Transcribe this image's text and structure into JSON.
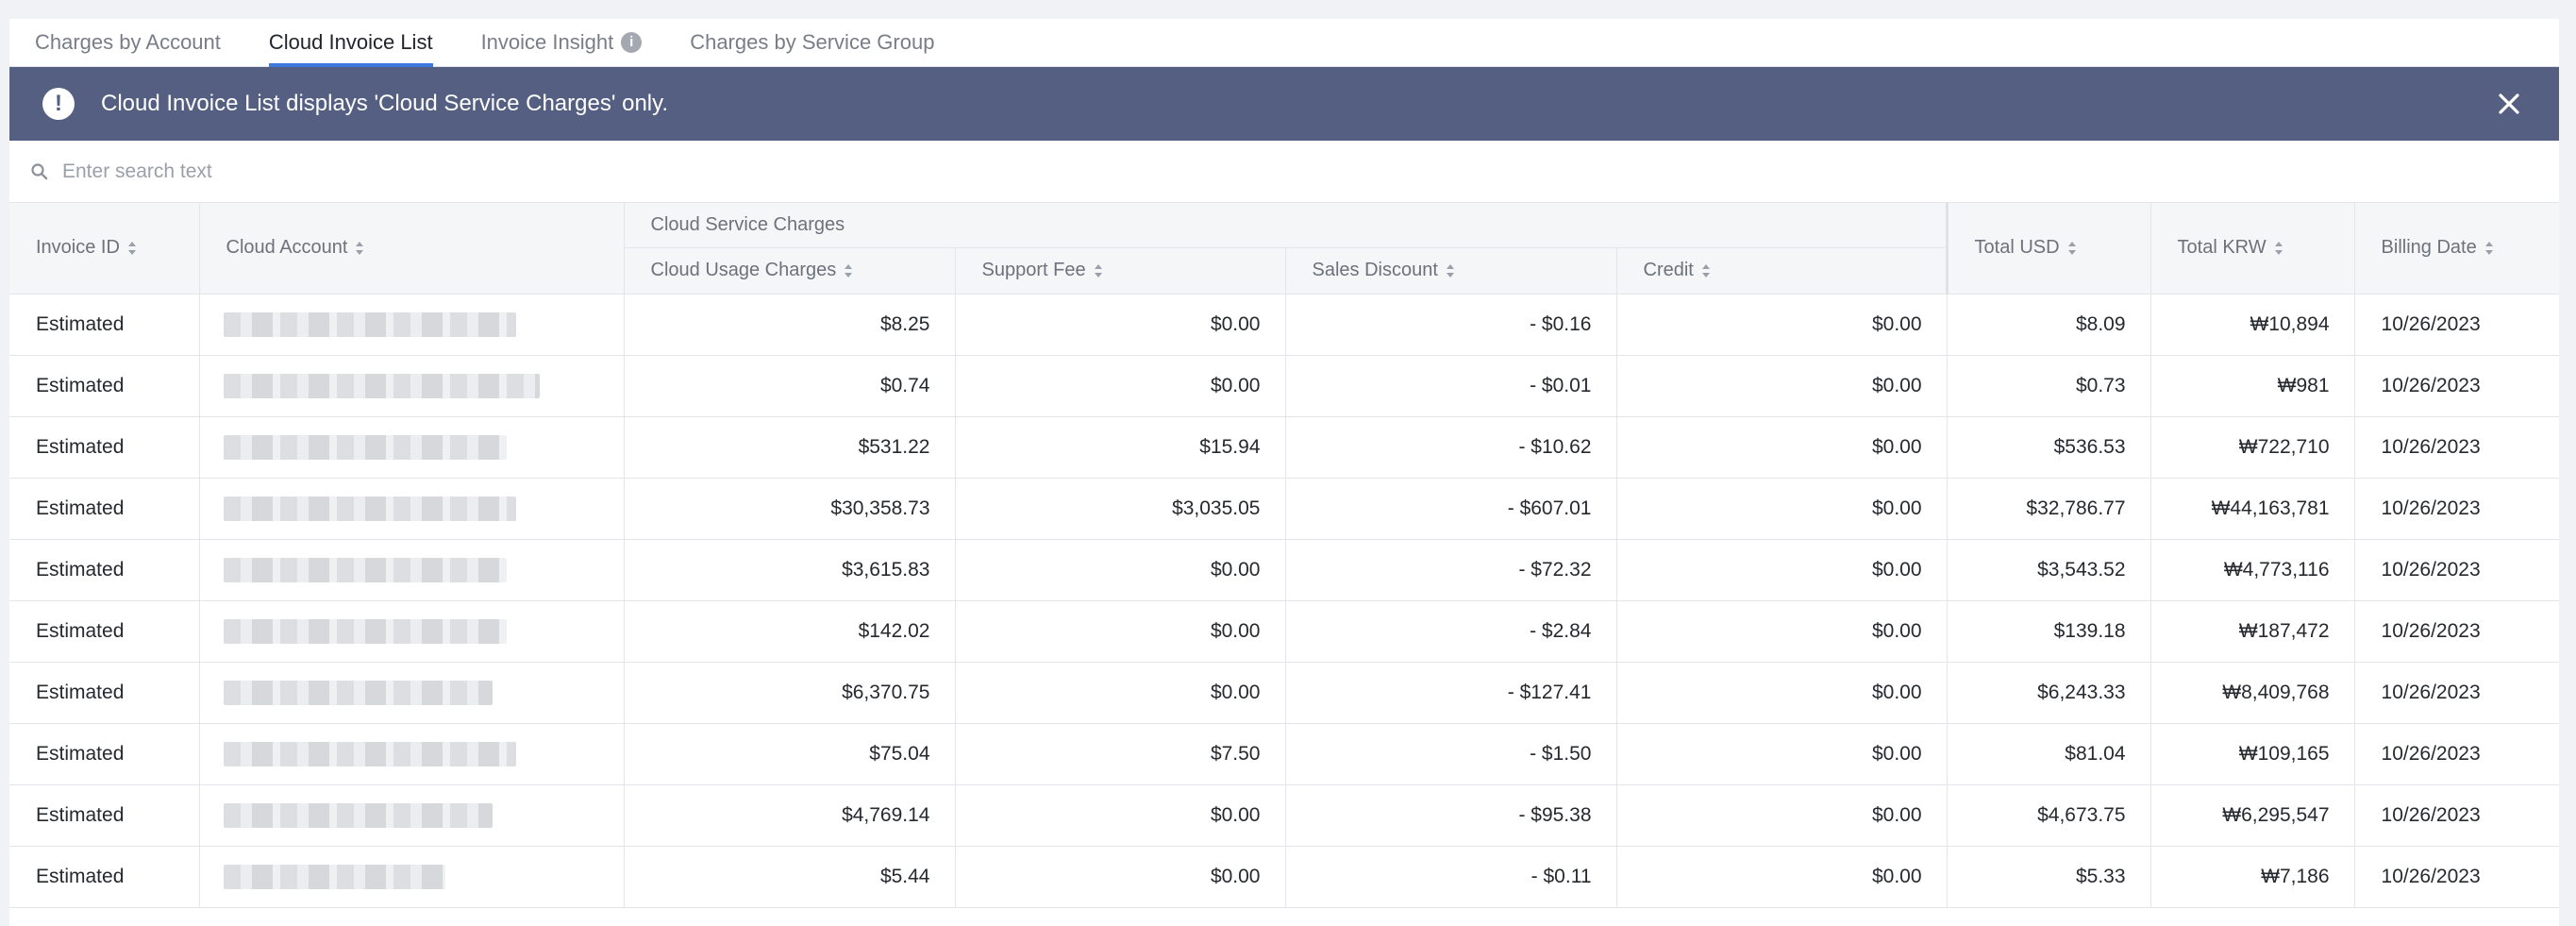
{
  "tabs": [
    {
      "label": "Charges by Account",
      "active": false
    },
    {
      "label": "Cloud Invoice List",
      "active": true
    },
    {
      "label": "Invoice Insight",
      "active": false,
      "info": "i"
    },
    {
      "label": "Charges by Service Group",
      "active": false
    }
  ],
  "banner": {
    "alert_glyph": "!",
    "message": "Cloud Invoice List displays 'Cloud Service Charges' only.",
    "color": "#545f82"
  },
  "search": {
    "placeholder": "Enter search text",
    "value": ""
  },
  "table": {
    "headers": {
      "invoice_id": "Invoice ID",
      "cloud_account": "Cloud Account",
      "group": "Cloud Service Charges",
      "usage": "Cloud Usage Charges",
      "support": "Support Fee",
      "discount": "Sales Discount",
      "credit": "Credit",
      "total_usd": "Total USD",
      "total_krw": "Total KRW",
      "billing_date": "Billing Date"
    },
    "rows": [
      {
        "invoice_id": "Estimated",
        "usage": "$8.25",
        "support": "$0.00",
        "discount": "- $0.16",
        "credit": "$0.00",
        "total_usd": "$8.09",
        "total_krw": "₩10,894",
        "billing_date": "10/26/2023"
      },
      {
        "invoice_id": "Estimated",
        "usage": "$0.74",
        "support": "$0.00",
        "discount": "- $0.01",
        "credit": "$0.00",
        "total_usd": "$0.73",
        "total_krw": "₩981",
        "billing_date": "10/26/2023"
      },
      {
        "invoice_id": "Estimated",
        "usage": "$531.22",
        "support": "$15.94",
        "discount": "- $10.62",
        "credit": "$0.00",
        "total_usd": "$536.53",
        "total_krw": "₩722,710",
        "billing_date": "10/26/2023"
      },
      {
        "invoice_id": "Estimated",
        "usage": "$30,358.73",
        "support": "$3,035.05",
        "discount": "- $607.01",
        "credit": "$0.00",
        "total_usd": "$32,786.77",
        "total_krw": "₩44,163,781",
        "billing_date": "10/26/2023"
      },
      {
        "invoice_id": "Estimated",
        "usage": "$3,615.83",
        "support": "$0.00",
        "discount": "- $72.32",
        "credit": "$0.00",
        "total_usd": "$3,543.52",
        "total_krw": "₩4,773,116",
        "billing_date": "10/26/2023"
      },
      {
        "invoice_id": "Estimated",
        "usage": "$142.02",
        "support": "$0.00",
        "discount": "- $2.84",
        "credit": "$0.00",
        "total_usd": "$139.18",
        "total_krw": "₩187,472",
        "billing_date": "10/26/2023"
      },
      {
        "invoice_id": "Estimated",
        "usage": "$6,370.75",
        "support": "$0.00",
        "discount": "- $127.41",
        "credit": "$0.00",
        "total_usd": "$6,243.33",
        "total_krw": "₩8,409,768",
        "billing_date": "10/26/2023"
      },
      {
        "invoice_id": "Estimated",
        "usage": "$75.04",
        "support": "$7.50",
        "discount": "- $1.50",
        "credit": "$0.00",
        "total_usd": "$81.04",
        "total_krw": "₩109,165",
        "billing_date": "10/26/2023"
      },
      {
        "invoice_id": "Estimated",
        "usage": "$4,769.14",
        "support": "$0.00",
        "discount": "- $95.38",
        "credit": "$0.00",
        "total_usd": "$4,673.75",
        "total_krw": "₩6,295,547",
        "billing_date": "10/26/2023"
      },
      {
        "invoice_id": "Estimated",
        "usage": "$5.44",
        "support": "$0.00",
        "discount": "- $0.11",
        "credit": "$0.00",
        "total_usd": "$5.33",
        "total_krw": "₩7,186",
        "billing_date": "10/26/2023"
      }
    ]
  },
  "colors": {
    "accent": "#3c7ae0",
    "banner": "#545f82",
    "border": "#e3e5ea",
    "header_bg": "#f5f6f8"
  }
}
